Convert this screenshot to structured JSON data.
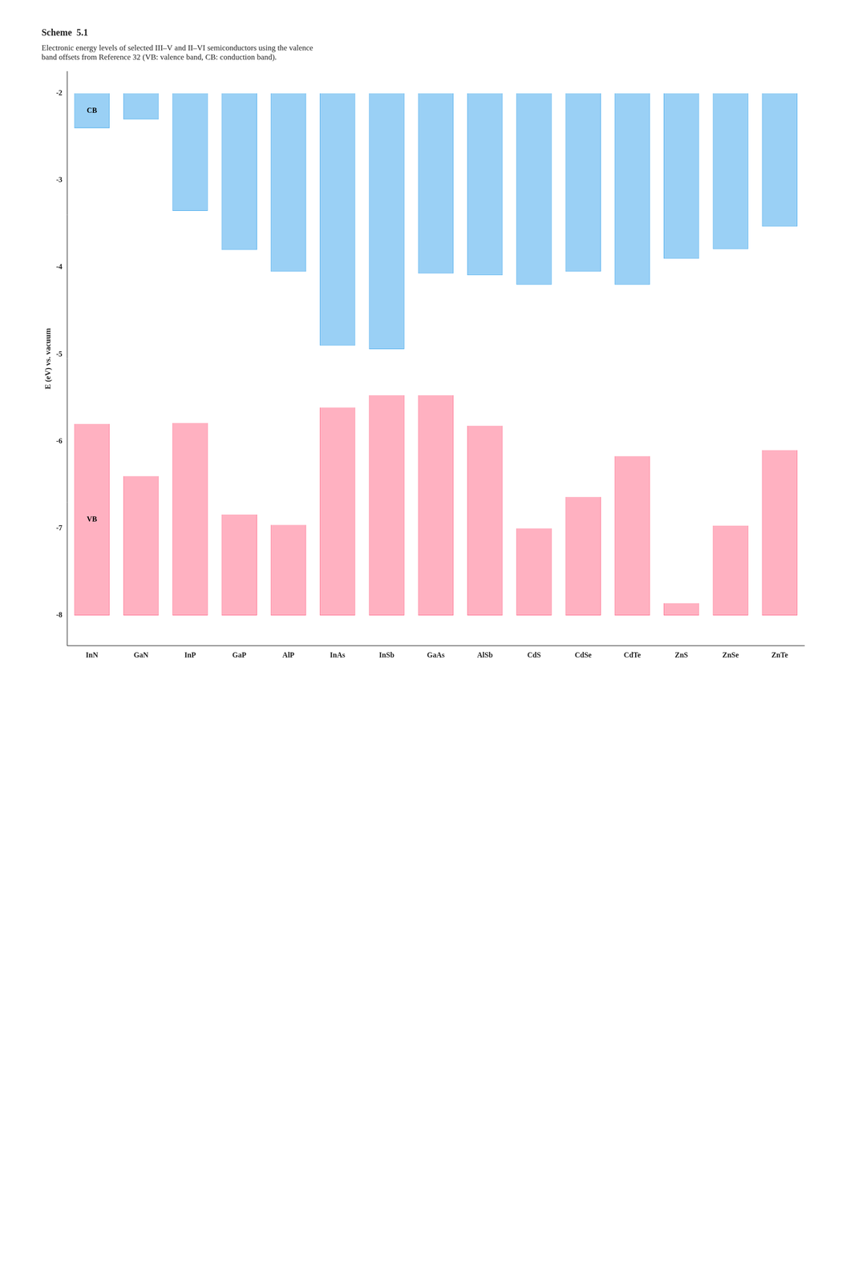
{
  "chart_data": {
    "type": "bar",
    "title": "Scheme  5.1",
    "subtitle": "Electronic energy levels of selected III–V and II–VI semiconductors using the valence\nband offsets from Reference 32 (VB: valence band, CB: conduction band).",
    "categories": [
      "InN",
      "GaN",
      "InP",
      "GaP",
      "AlP",
      "InAs",
      "InSb",
      "GaAs",
      "AlSb",
      "CdS",
      "CdSe",
      "CdTe",
      "ZnS",
      "ZnSe",
      "ZnTe"
    ],
    "series": [
      {
        "name": "CB",
        "base": -2.0,
        "values": [
          -2.4,
          -2.3,
          -3.35,
          -3.8,
          -4.05,
          -4.9,
          -4.94,
          -4.07,
          -4.09,
          -4.2,
          -4.05,
          -4.2,
          -3.9,
          -3.79,
          -3.53
        ]
      },
      {
        "name": "VB",
        "base": -8.0,
        "values": [
          -5.8,
          -6.4,
          -5.79,
          -6.84,
          -6.96,
          -5.61,
          -5.47,
          -5.47,
          -5.82,
          -7.0,
          -6.64,
          -6.17,
          -7.86,
          -6.97,
          -6.1
        ]
      }
    ],
    "annotations": [
      {
        "text": "CB",
        "x": "InN"
      },
      {
        "text": "VB",
        "x": "InN"
      }
    ],
    "y_label": "E (eV) vs. vacuum",
    "ylim": [
      -8.35,
      -1.75
    ],
    "yticks": [
      -2,
      -3,
      -4,
      -5,
      -6,
      -7,
      -8
    ],
    "grid": false,
    "legend": false
  }
}
